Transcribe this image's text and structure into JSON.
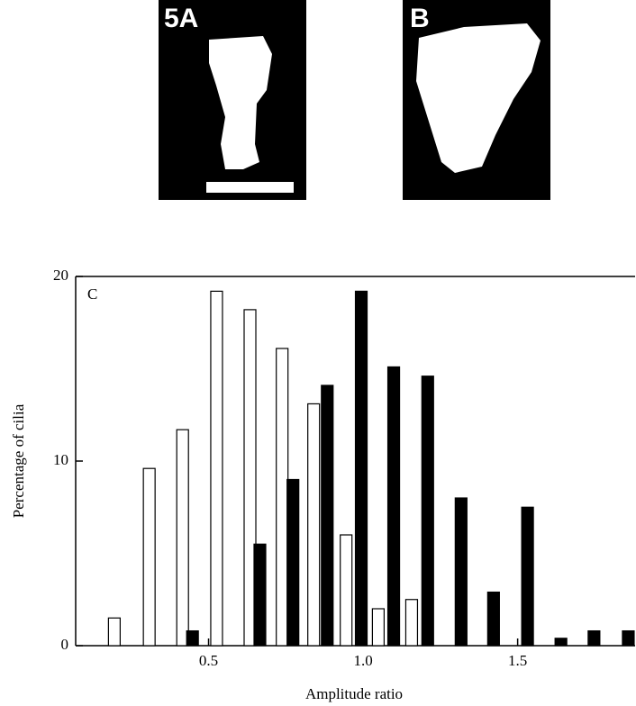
{
  "images": {
    "labels": [
      "5A",
      "B"
    ]
  },
  "chart_data": {
    "type": "bar",
    "panel_label": "C",
    "x_label": "Amplitude ratio",
    "y_label": "Percentage of cilia",
    "xlim": [
      0.07,
      1.88
    ],
    "ylim": [
      0,
      20
    ],
    "xticks": [
      0.5,
      {
        "value": 1,
        "label": "1.0"
      },
      1.5
    ],
    "yticks": [
      0,
      10,
      20
    ],
    "series": [
      {
        "color": "#ffffff",
        "x": [
          0.195,
          0.308,
          0.416,
          0.526,
          0.634,
          0.738,
          0.84,
          0.945,
          1.049,
          1.157
        ],
        "values": [
          1.5,
          9.6,
          11.7,
          19.2,
          18.2,
          16.1,
          13.1,
          6.0,
          2.0,
          2.5
        ]
      },
      {
        "color": "#000000",
        "x": [
          0.448,
          0.666,
          0.773,
          0.884,
          0.994,
          1.099,
          1.209,
          1.317,
          1.422,
          1.532,
          1.64,
          1.747,
          1.858
        ],
        "values": [
          0.8,
          5.5,
          9.0,
          14.1,
          19.2,
          15.1,
          14.6,
          8.0,
          2.9,
          7.5,
          0.4,
          0.8,
          0.8
        ]
      }
    ]
  }
}
